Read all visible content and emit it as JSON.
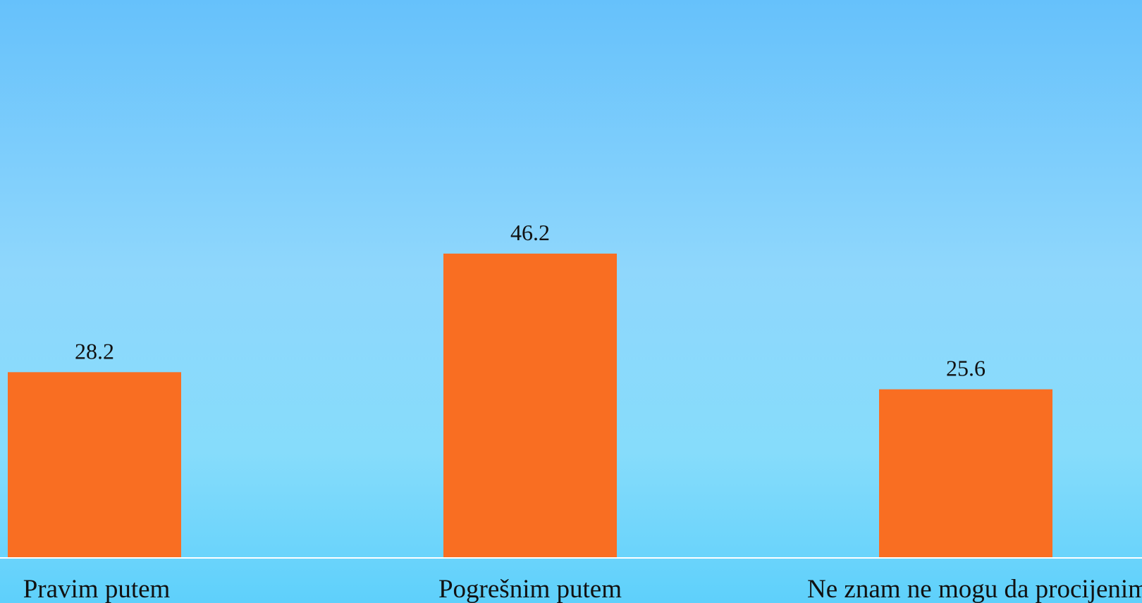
{
  "chart_data": {
    "type": "bar",
    "categories": [
      "Pravim putem",
      "Pogrešnim putem",
      "Ne znam ne mogu da procijenim"
    ],
    "values": [
      28.2,
      46.2,
      25.6
    ],
    "data_labels": [
      "28.2",
      "46.2",
      "25.6"
    ],
    "title": "",
    "xlabel": "",
    "ylabel": "",
    "ylim": [
      0,
      50
    ],
    "grid": false,
    "bar_color": "#f96e22",
    "axis_color": "#ffffff"
  }
}
